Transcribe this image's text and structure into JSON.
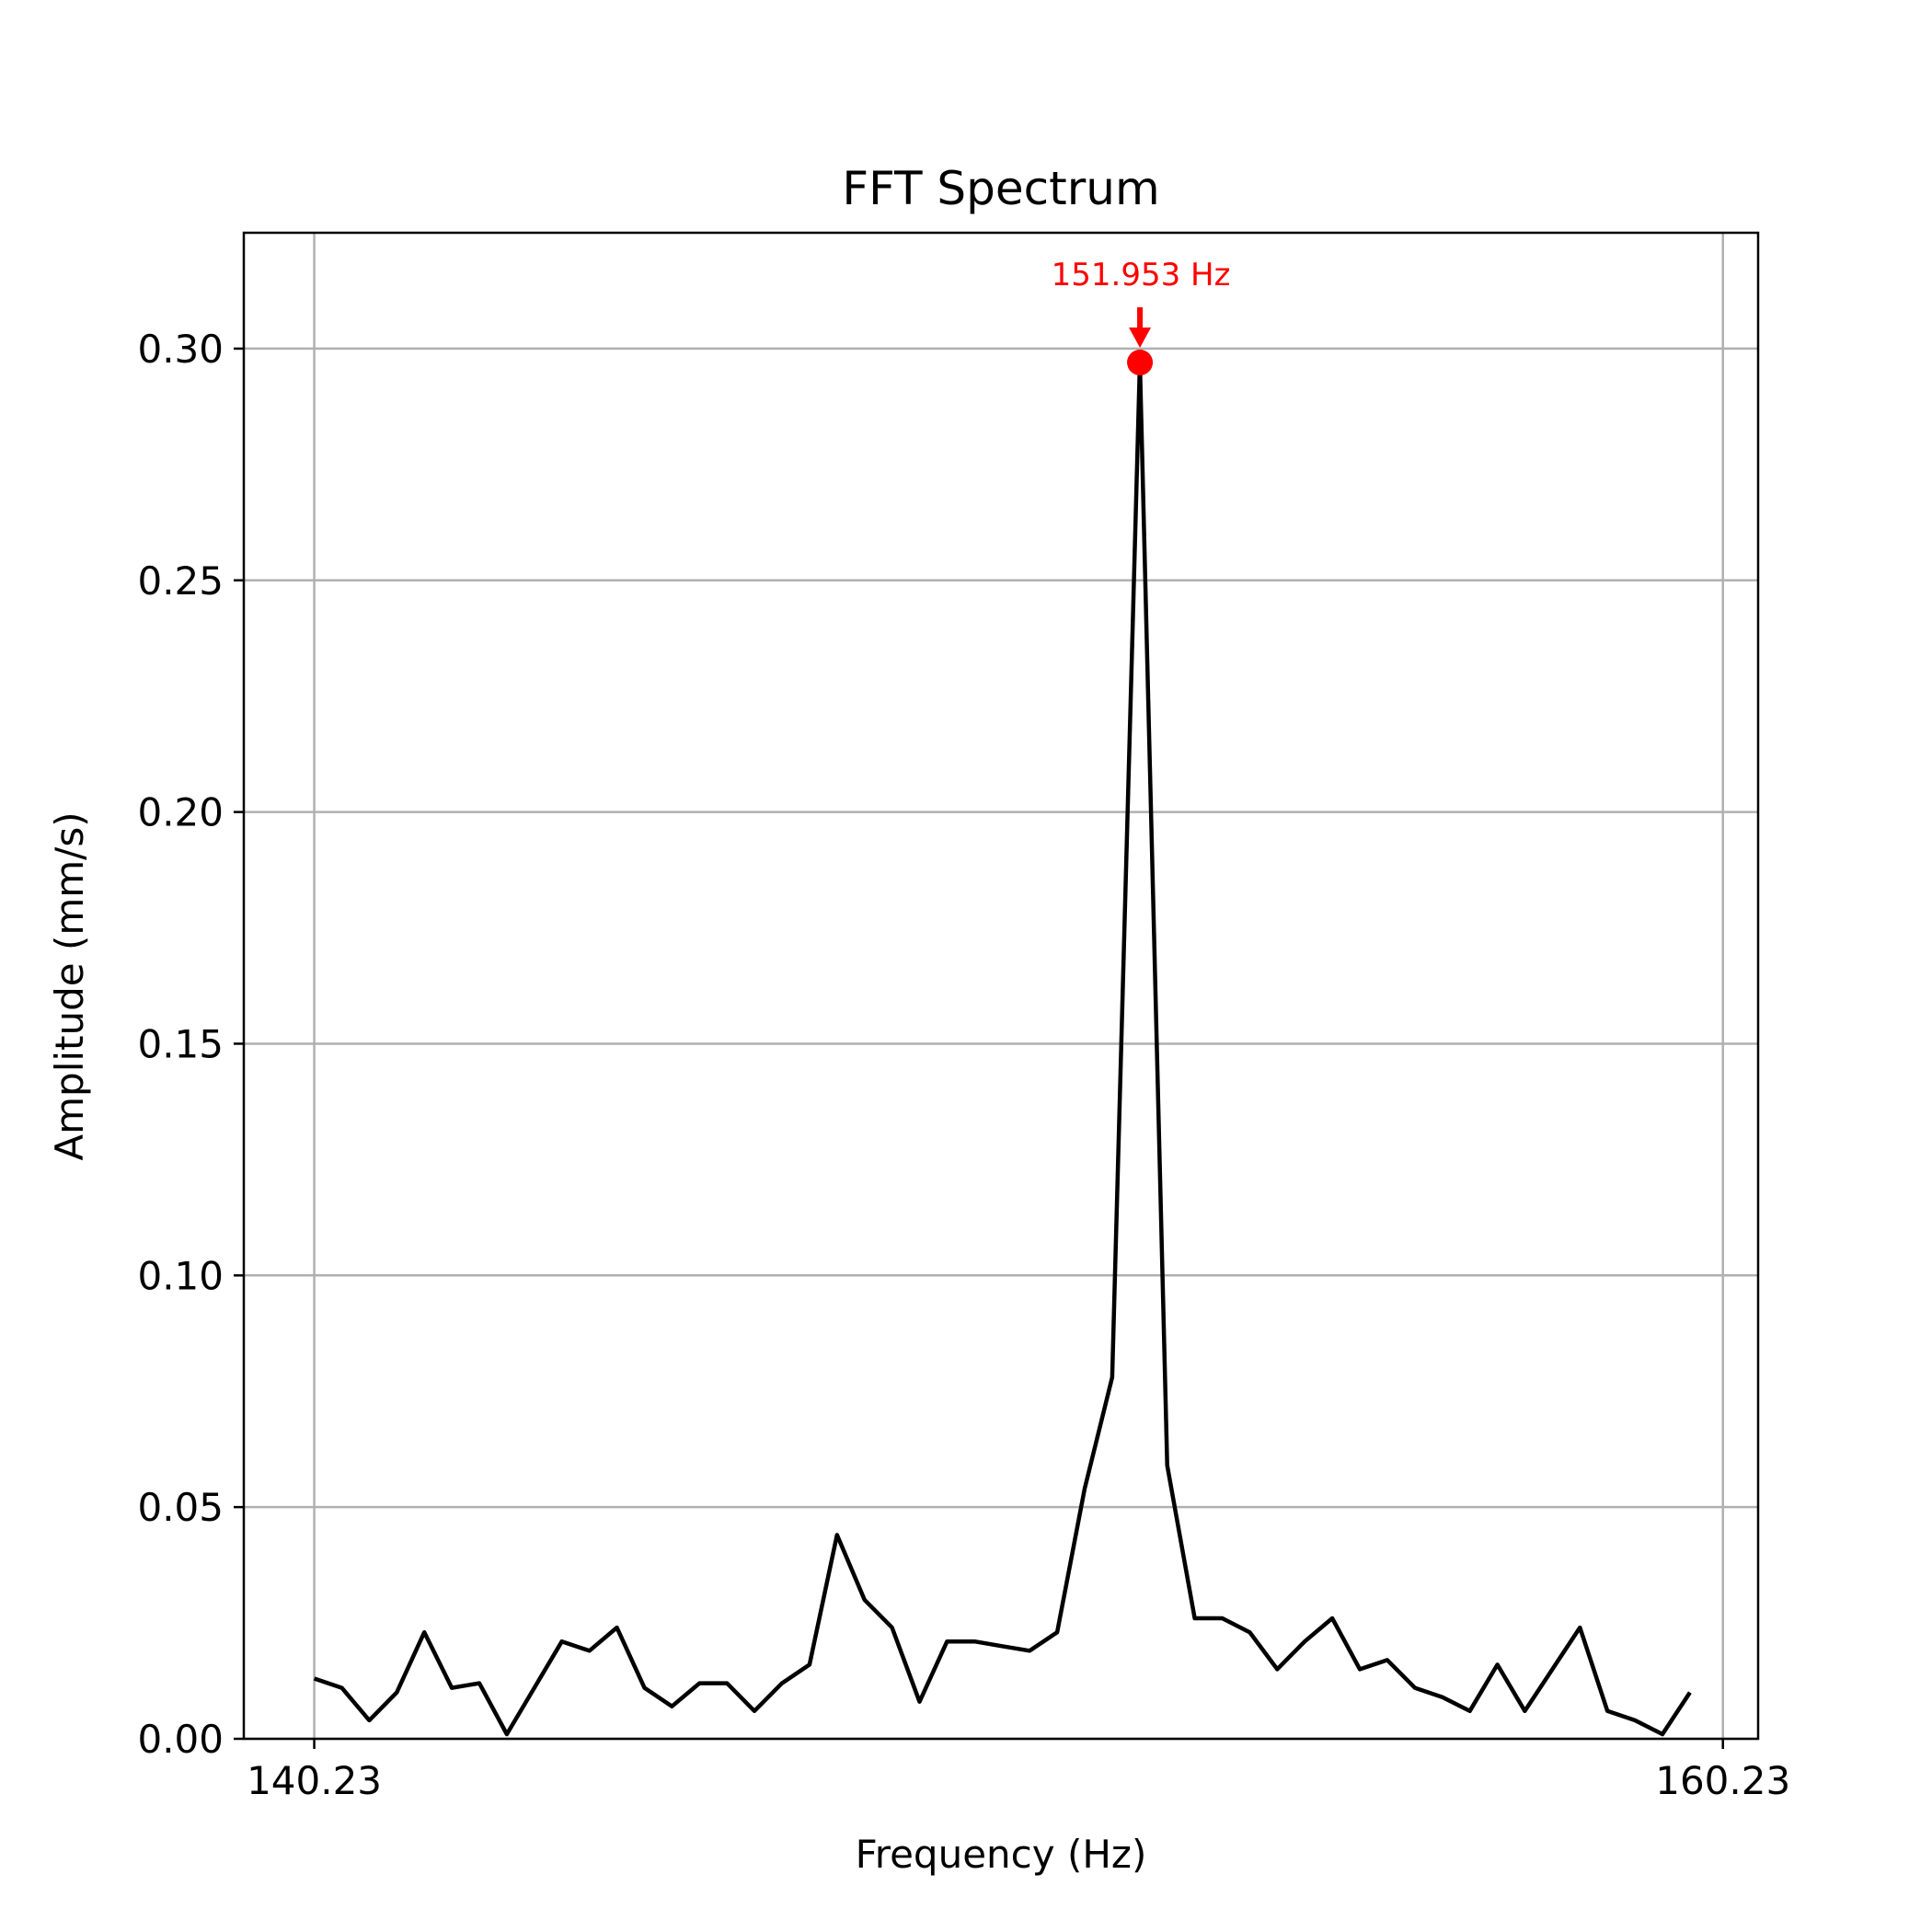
{
  "chart_data": {
    "type": "line",
    "title": "FFT Spectrum",
    "xlabel": "Frequency (Hz)",
    "ylabel": "Amplitude (mm/s)",
    "xlim": [
      139.23,
      160.73
    ],
    "ylim": [
      0.0,
      0.325
    ],
    "xticks": [
      140.23,
      160.23
    ],
    "xtick_labels": [
      "140.23",
      "160.23"
    ],
    "yticks": [
      0.0,
      0.05,
      0.1,
      0.15,
      0.2,
      0.25,
      0.3
    ],
    "ytick_labels": [
      "0.00",
      "0.05",
      "0.10",
      "0.15",
      "0.20",
      "0.25",
      "0.30"
    ],
    "grid": true,
    "series": [
      {
        "color": "#000000",
        "x": [
          140.23,
          140.621,
          141.011,
          141.402,
          141.793,
          142.183,
          142.574,
          142.965,
          143.355,
          143.746,
          144.137,
          144.527,
          144.918,
          145.309,
          145.699,
          146.09,
          146.48,
          146.871,
          147.262,
          147.652,
          148.043,
          148.434,
          148.824,
          149.215,
          149.606,
          149.996,
          150.387,
          150.778,
          151.168,
          151.559,
          151.953,
          152.34,
          152.731,
          153.121,
          153.512,
          153.903,
          154.293,
          154.684,
          155.075,
          155.465,
          155.856,
          156.247,
          156.637,
          157.028,
          157.418,
          157.809,
          158.2,
          158.59,
          158.981,
          159.372,
          159.762
        ],
        "y": [
          0.013,
          0.011,
          0.004,
          0.01,
          0.023,
          0.011,
          0.012,
          0.001,
          0.011,
          0.021,
          0.019,
          0.024,
          0.011,
          0.007,
          0.012,
          0.012,
          0.006,
          0.012,
          0.016,
          0.044,
          0.03,
          0.024,
          0.008,
          0.021,
          0.021,
          0.02,
          0.019,
          0.023,
          0.054,
          0.078,
          0.297,
          0.059,
          0.026,
          0.026,
          0.023,
          0.015,
          0.021,
          0.026,
          0.015,
          0.017,
          0.011,
          0.009,
          0.006,
          0.016,
          0.006,
          0.015,
          0.024,
          0.006,
          0.004,
          0.001,
          0.01
        ]
      }
    ],
    "peak": {
      "x": 151.953,
      "y": 0.297,
      "label": "151.953 Hz",
      "color": "#ff0000"
    }
  }
}
